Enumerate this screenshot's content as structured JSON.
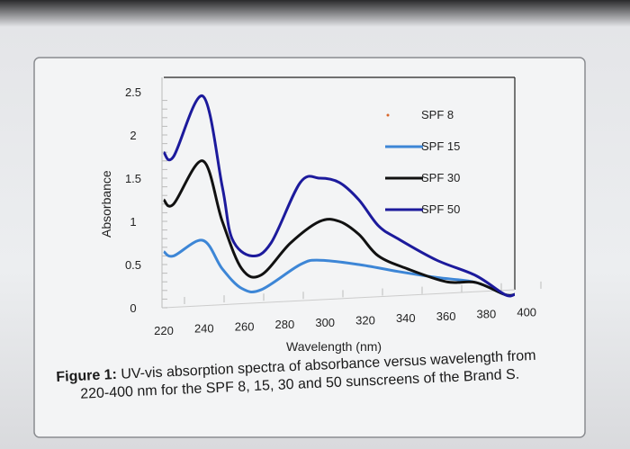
{
  "chart_data": {
    "type": "line",
    "title": "",
    "xlabel": "Wavelength (nm)",
    "ylabel": "Absorbance",
    "xlim": [
      220,
      400
    ],
    "ylim": [
      0,
      2.5
    ],
    "x_ticks": [
      "220",
      "240",
      "260",
      "280",
      "300",
      "320",
      "340",
      "360",
      "380",
      "400"
    ],
    "y_ticks": [
      "0",
      "0.5",
      "1",
      "1.5",
      "2",
      "2.5"
    ],
    "legend_position": "top-right",
    "grid": false,
    "series": [
      {
        "name": "SPF 8",
        "color": "#d9662a",
        "marker_only": true,
        "x": [],
        "y": []
      },
      {
        "name": "SPF 15",
        "color": "#3d86d6",
        "x": [
          220,
          225,
          240,
          250,
          260,
          270,
          290,
          300,
          320,
          340,
          360,
          380,
          395,
          400
        ],
        "y": [
          0.65,
          0.6,
          0.78,
          0.45,
          0.2,
          0.18,
          0.5,
          0.55,
          0.5,
          0.42,
          0.35,
          0.2,
          0.05,
          0.05
        ]
      },
      {
        "name": "SPF 30",
        "color": "#111111",
        "x": [
          220,
          225,
          240,
          250,
          260,
          270,
          285,
          300,
          310,
          320,
          330,
          345,
          365,
          380,
          395,
          400
        ],
        "y": [
          1.25,
          1.2,
          1.7,
          1.0,
          0.45,
          0.38,
          0.75,
          1.0,
          1.0,
          0.85,
          0.6,
          0.45,
          0.3,
          0.2,
          0.05,
          0.05
        ]
      },
      {
        "name": "SPF 50",
        "color": "#1c1a9c",
        "x": [
          220,
          225,
          240,
          250,
          255,
          265,
          275,
          290,
          300,
          310,
          320,
          330,
          340,
          360,
          380,
          395,
          400
        ],
        "y": [
          1.8,
          1.75,
          2.45,
          1.4,
          0.8,
          0.6,
          0.75,
          1.45,
          1.5,
          1.45,
          1.25,
          0.95,
          0.8,
          0.55,
          0.28,
          0.05,
          0.05
        ]
      }
    ]
  },
  "caption": {
    "label": "Figure 1:",
    "line1": " UV-vis absorption spectra of absorbance versus wavelength from",
    "line2": "220-400 nm for the SPF 8, 15, 30 and 50 sunscreens of the Brand S."
  }
}
